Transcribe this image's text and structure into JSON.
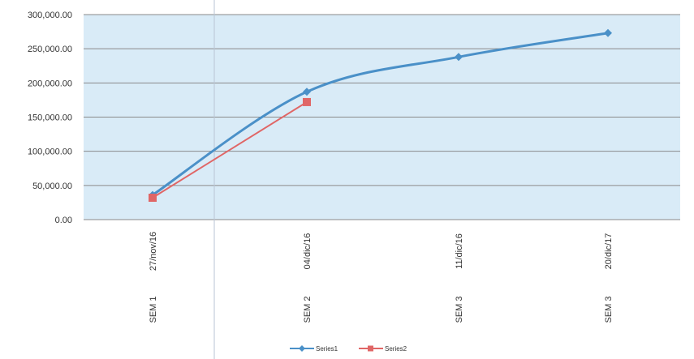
{
  "chart_data": {
    "type": "line",
    "categories": [
      "27/nov/16",
      "04/dic/16",
      "11/dic/16",
      "20/dic/17"
    ],
    "category_groups": [
      "SEM 1",
      "SEM 2",
      "SEM 3",
      "SEM 3"
    ],
    "series": [
      {
        "name": "Series1",
        "values": [
          36000,
          187000,
          238000,
          273000
        ],
        "color": "#4a90c8",
        "marker": "diamond"
      },
      {
        "name": "Series2",
        "values": [
          32000,
          172000,
          null,
          null
        ],
        "color": "#e06666",
        "marker": "square"
      }
    ],
    "y_ticks": [
      "0.00",
      "50,000.00",
      "100,000.00",
      "150,000.00",
      "200,000.00",
      "250,000.00",
      "300,000.00"
    ],
    "ylim": [
      0,
      300000
    ],
    "grid": true,
    "plot_background": "#d9ebf7",
    "legend": "bottom-center"
  }
}
